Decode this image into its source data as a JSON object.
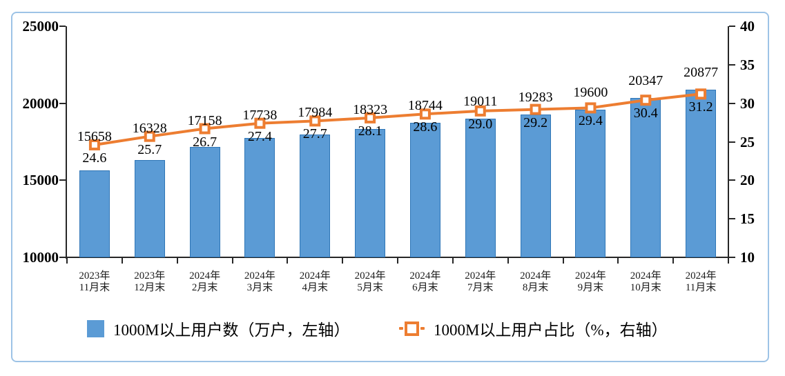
{
  "chart_data": {
    "type": "combo_bar_line",
    "categories": [
      "2023年11月末",
      "2023年12月末",
      "2024年2月末",
      "2024年3月末",
      "2024年4月末",
      "2024年5月末",
      "2024年6月末",
      "2024年7月末",
      "2024年8月末",
      "2024年9月末",
      "2024年10月末",
      "2024年11月末"
    ],
    "series": [
      {
        "name": "1000M以上用户数（万户，左轴）",
        "type": "bar",
        "axis": "left",
        "values": [
          15658,
          16328,
          17158,
          17738,
          17984,
          18323,
          18744,
          19011,
          19283,
          19600,
          20347,
          20877
        ],
        "value_labels": [
          "15658",
          "16328",
          "17158",
          "17738",
          "17984",
          "18323",
          "18744",
          "19011",
          "19283",
          "19600",
          "20347",
          "20877"
        ],
        "color": "#5B9BD5",
        "border_color": "#2E75B6"
      },
      {
        "name": "1000M以上用户占比（%，右轴）",
        "type": "line",
        "axis": "right",
        "values": [
          24.6,
          25.7,
          26.7,
          27.4,
          27.7,
          28.1,
          28.6,
          29.0,
          29.2,
          29.4,
          30.4,
          31.2
        ],
        "value_labels": [
          "24.6",
          "25.7",
          "26.7",
          "27.4",
          "27.7",
          "28.1",
          "28.6",
          "29.0",
          "29.2",
          "29.4",
          "30.4",
          "31.2"
        ],
        "color": "#ED7D31",
        "marker": "square-hollow"
      }
    ],
    "left_axis": {
      "min": 10000,
      "max": 25000,
      "ticks": [
        10000,
        15000,
        20000,
        25000
      ]
    },
    "right_axis": {
      "min": 10,
      "max": 40,
      "ticks": [
        10,
        15,
        20,
        25,
        30,
        35,
        40
      ]
    },
    "grid": false,
    "legend_position": "bottom",
    "colors": {
      "frame_border": "#9DC3E6",
      "axis": "#262626",
      "label_text": "#000000"
    }
  }
}
